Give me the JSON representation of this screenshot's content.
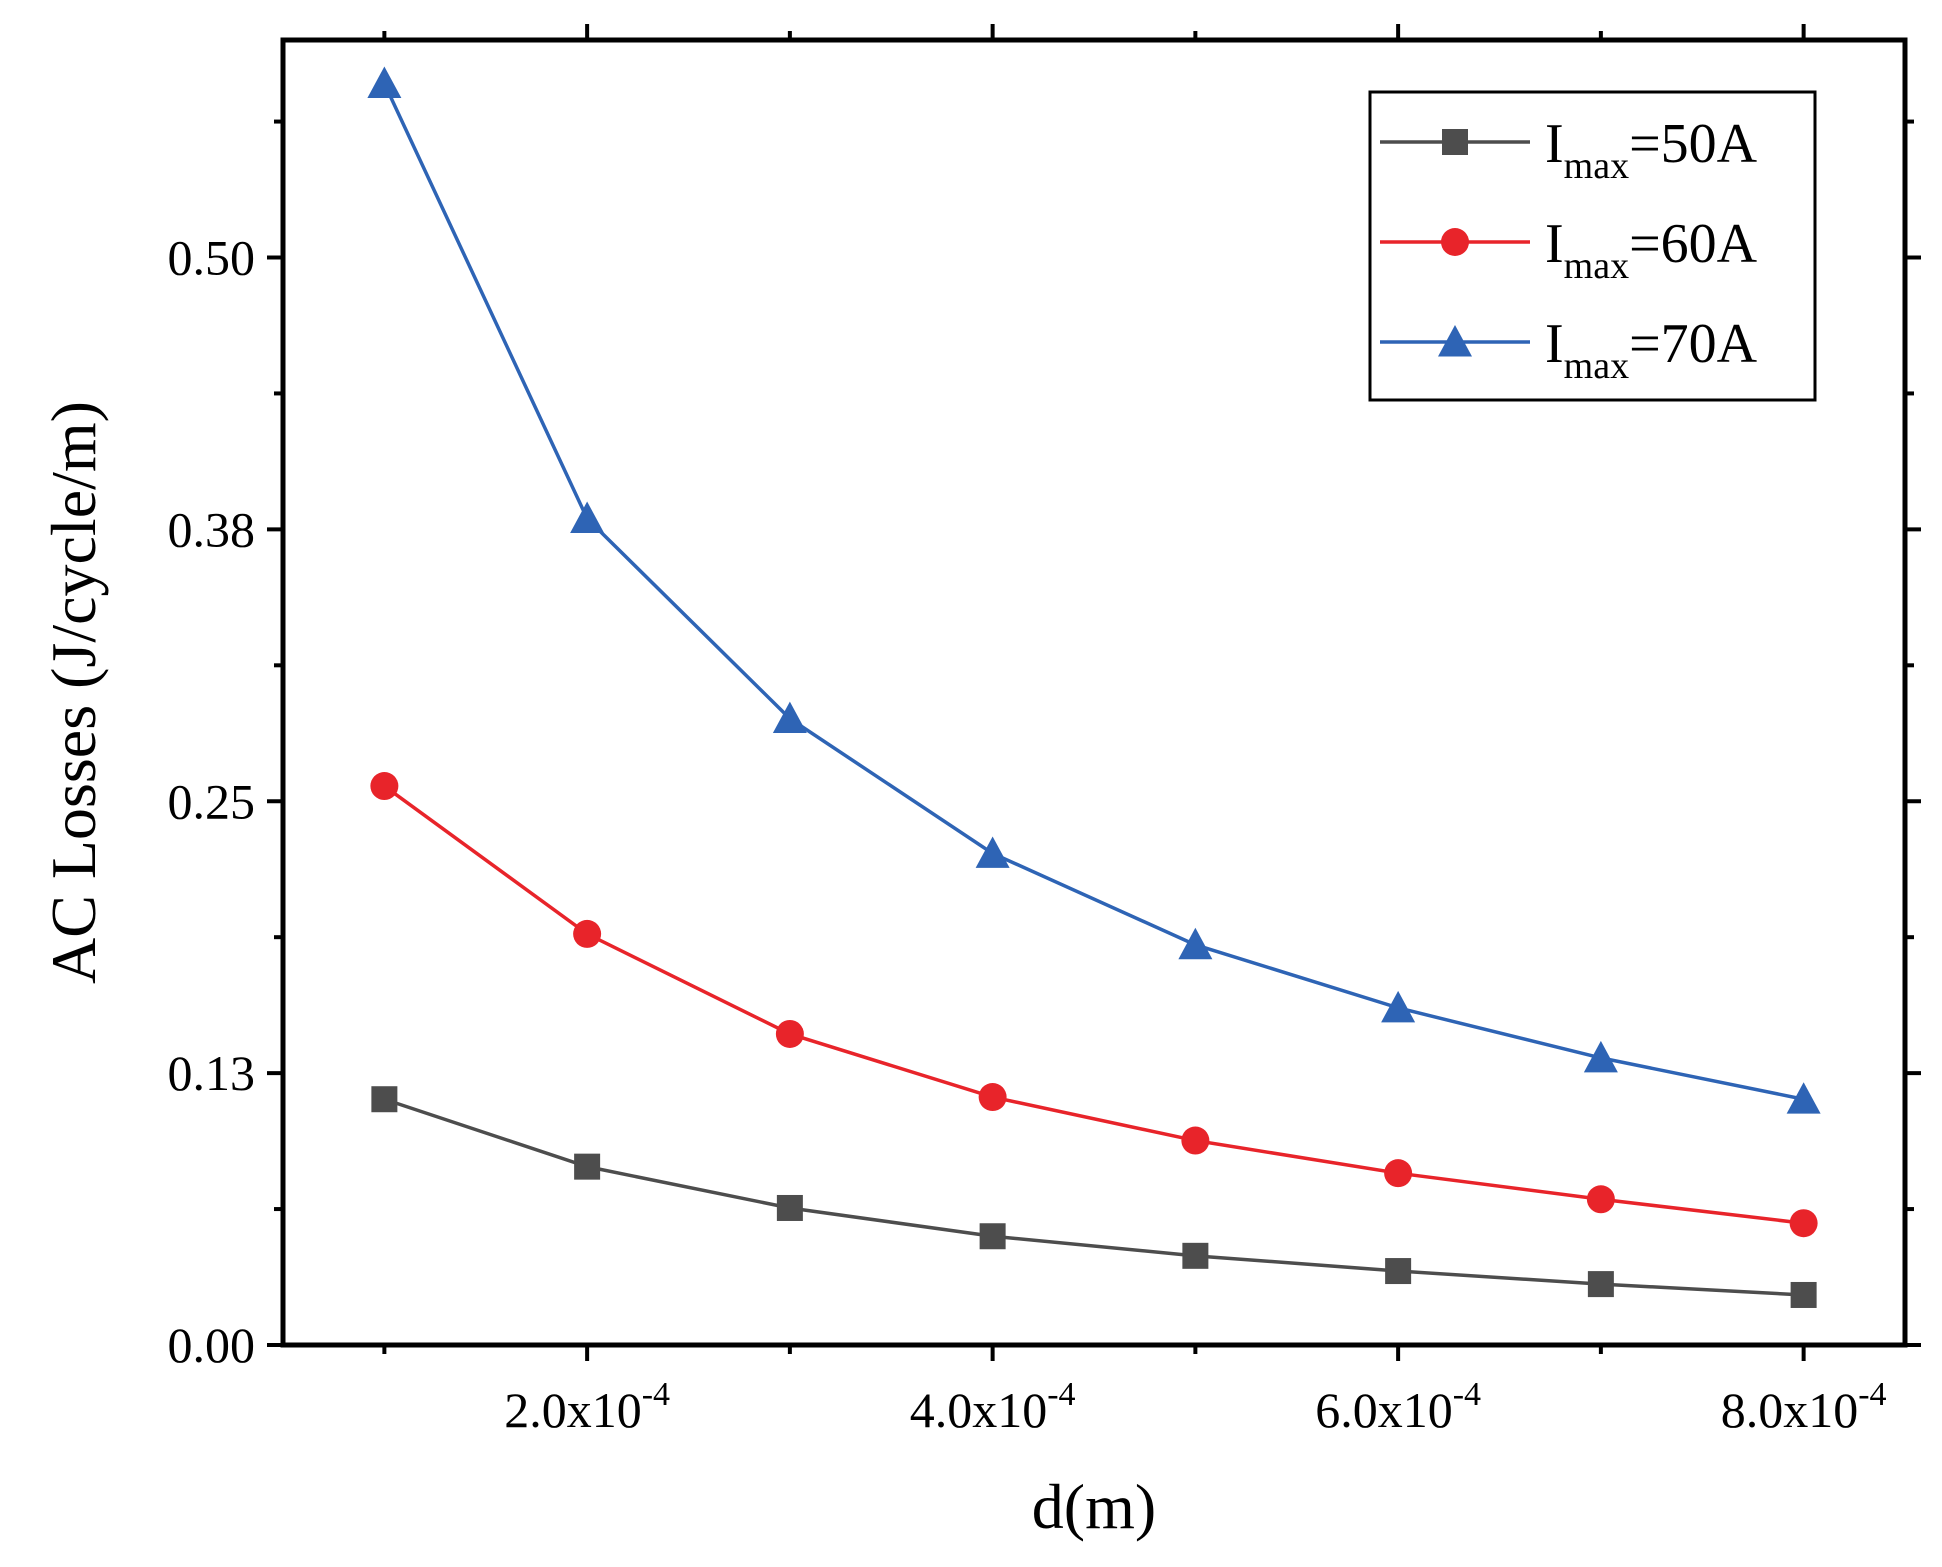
{
  "chart_data": {
    "type": "line",
    "title": "",
    "xlabel": "d(m)",
    "ylabel": "AC Losses (J/cycle/m)",
    "x": [
      0.0001,
      0.0002,
      0.0003,
      0.0004,
      0.0005,
      0.0006,
      0.0007,
      0.0008
    ],
    "xlim": [
      5e-05,
      0.00085
    ],
    "ylim": [
      0.0,
      0.6
    ],
    "xticks": [
      0.0002,
      0.0004,
      0.0006,
      0.0008
    ],
    "xtick_labels": [
      {
        "mantissa": "2.0x10",
        "exponent": "-4"
      },
      {
        "mantissa": "4.0x10",
        "exponent": "-4"
      },
      {
        "mantissa": "6.0x10",
        "exponent": "-4"
      },
      {
        "mantissa": "8.0x10",
        "exponent": "-4"
      }
    ],
    "yticks": [
      0.0,
      0.125,
      0.25,
      0.375,
      0.5
    ],
    "ytick_labels": [
      "0.00",
      "0.13",
      "0.25",
      "0.38",
      "0.50"
    ],
    "grid": false,
    "legend_position": "top-right",
    "series": [
      {
        "name": "Imax=50A",
        "label_main": "I",
        "label_sub": "max",
        "label_tail": "=50A",
        "color": "#4d4d4d",
        "marker": "square",
        "values": [
          0.113,
          0.082,
          0.063,
          0.05,
          0.041,
          0.034,
          0.028,
          0.023
        ]
      },
      {
        "name": "Imax=60A",
        "label_main": "I",
        "label_sub": "max",
        "label_tail": "=60A",
        "color": "#e8242a",
        "marker": "circle",
        "values": [
          0.257,
          0.189,
          0.143,
          0.114,
          0.094,
          0.079,
          0.067,
          0.056
        ]
      },
      {
        "name": "Imax=70A",
        "label_main": "I",
        "label_sub": "max",
        "label_tail": "=70A",
        "color": "#2e64b5",
        "marker": "triangle",
        "values": [
          0.58,
          0.38,
          0.288,
          0.226,
          0.184,
          0.155,
          0.132,
          0.113
        ]
      }
    ]
  }
}
